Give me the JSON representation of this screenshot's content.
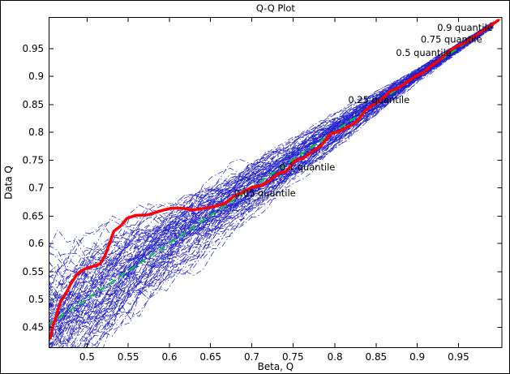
{
  "chart_data": {
    "type": "line",
    "title": "Q-Q Plot",
    "xlabel": "Beta, Q",
    "ylabel": "Data Q",
    "xlim": [
      0.454,
      1.004
    ],
    "ylim": [
      0.412,
      1.006
    ],
    "grid": false,
    "legend": "none",
    "xticks": {
      "values": [
        0.5,
        0.55,
        0.6,
        0.65,
        0.7,
        0.75,
        0.8,
        0.85,
        0.9,
        0.95
      ],
      "labels": [
        "0.5",
        "0.55",
        "0.6",
        "0.65",
        "0.7",
        "0.75",
        "0.8",
        "0.85",
        "0.9",
        "0.95"
      ]
    },
    "yticks": {
      "values": [
        0.45,
        0.5,
        0.55,
        0.6,
        0.65,
        0.7,
        0.75,
        0.8,
        0.85,
        0.9,
        0.95
      ],
      "labels": [
        "0.45",
        "0.5",
        "0.55",
        "0.6",
        "0.65",
        "0.7",
        "0.75",
        "0.8",
        "0.85",
        "0.9",
        "0.95"
      ]
    },
    "series": [
      {
        "name": "bootstrap-ensemble",
        "type": "ensemble",
        "color": "#2222cc",
        "line_style": "dash-dot",
        "line_width": 0.7,
        "count": 100,
        "spread_left": 0.085,
        "spread_right": 0.004,
        "spread_power": 1.6,
        "description": "Band of blue dash-dot resampled Q-Q curves around the diagonal, wide at lower-left and converging at upper-right"
      },
      {
        "name": "reference-line",
        "type": "line",
        "color": "#00cc33",
        "line_style": "dashed",
        "line_width": 2,
        "points": [
          [
            0.454,
            0.454
          ],
          [
            1.002,
            1.002
          ]
        ]
      },
      {
        "name": "empirical-quantile",
        "type": "line",
        "color": "#ff0000",
        "line_style": "solid",
        "line_width": 3.5,
        "points": [
          [
            0.456,
            0.43
          ],
          [
            0.459,
            0.452
          ],
          [
            0.463,
            0.47
          ],
          [
            0.468,
            0.494
          ],
          [
            0.474,
            0.508
          ],
          [
            0.481,
            0.528
          ],
          [
            0.489,
            0.546
          ],
          [
            0.498,
            0.554
          ],
          [
            0.508,
            0.559
          ],
          [
            0.516,
            0.563
          ],
          [
            0.522,
            0.577
          ],
          [
            0.528,
            0.601
          ],
          [
            0.533,
            0.622
          ],
          [
            0.541,
            0.631
          ],
          [
            0.549,
            0.645
          ],
          [
            0.559,
            0.65
          ],
          [
            0.574,
            0.651
          ],
          [
            0.589,
            0.658
          ],
          [
            0.602,
            0.663
          ],
          [
            0.616,
            0.663
          ],
          [
            0.629,
            0.66
          ],
          [
            0.643,
            0.663
          ],
          [
            0.657,
            0.667
          ],
          [
            0.668,
            0.672
          ],
          [
            0.678,
            0.684
          ],
          [
            0.688,
            0.691
          ],
          [
            0.7,
            0.7
          ],
          [
            0.712,
            0.704
          ],
          [
            0.722,
            0.713
          ],
          [
            0.733,
            0.726
          ],
          [
            0.742,
            0.729
          ],
          [
            0.752,
            0.748
          ],
          [
            0.763,
            0.753
          ],
          [
            0.773,
            0.764
          ],
          [
            0.785,
            0.776
          ],
          [
            0.795,
            0.796
          ],
          [
            0.806,
            0.801
          ],
          [
            0.817,
            0.809
          ],
          [
            0.828,
            0.819
          ],
          [
            0.838,
            0.839
          ],
          [
            0.848,
            0.849
          ],
          [
            0.858,
            0.859
          ],
          [
            0.868,
            0.873
          ],
          [
            0.878,
            0.879
          ],
          [
            0.888,
            0.889
          ],
          [
            0.898,
            0.899
          ],
          [
            0.908,
            0.906
          ],
          [
            0.918,
            0.919
          ],
          [
            0.928,
            0.929
          ],
          [
            0.938,
            0.943
          ],
          [
            0.948,
            0.953
          ],
          [
            0.958,
            0.959
          ],
          [
            0.968,
            0.969
          ],
          [
            0.978,
            0.979
          ],
          [
            0.988,
            0.989
          ],
          [
            0.999,
            1.0
          ]
        ]
      }
    ],
    "annotations": [
      {
        "label": "0.05 quantile",
        "x": 0.676,
        "y": 0.69
      },
      {
        "label": "0.1 quantile",
        "x": 0.731,
        "y": 0.737
      },
      {
        "label": "0.25 quantile",
        "x": 0.814,
        "y": 0.857
      },
      {
        "label": "0.5 quantile",
        "x": 0.872,
        "y": 0.942
      },
      {
        "label": "0.75 quantile",
        "x": 0.902,
        "y": 0.966
      },
      {
        "label": "0.9 quantile",
        "x": 0.922,
        "y": 0.987
      }
    ]
  }
}
